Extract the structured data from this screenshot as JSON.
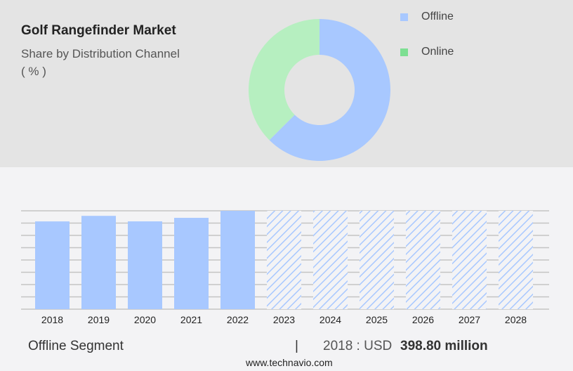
{
  "header": {
    "title": "Golf Rangefinder Market",
    "subtitle": "Share by Distribution Channel",
    "unit": "( % )"
  },
  "colors": {
    "offline": "#a8c8ff",
    "online": "#b6efc0",
    "online_legend": "#7ddf92",
    "grid": "#c4c4c4"
  },
  "chart_data": [
    {
      "type": "pie",
      "donut": true,
      "start": "top",
      "direction": "clockwise",
      "legend_placement": "top-right",
      "slices": [
        {
          "name": "Offline",
          "value": 62.5
        },
        {
          "name": "Online",
          "value": 37.5
        }
      ]
    },
    {
      "type": "bar",
      "categories": [
        "2018",
        "2019",
        "2020",
        "2021",
        "2022",
        "2023",
        "2024",
        "2025",
        "2026",
        "2027",
        "2028"
      ],
      "values": [
        398.8,
        424,
        399,
        415,
        447,
        447,
        447,
        447,
        447,
        447,
        447
      ],
      "forecast": [
        false,
        false,
        false,
        false,
        false,
        true,
        true,
        true,
        true,
        true,
        true
      ],
      "ylim": [
        0,
        447
      ],
      "grid": true,
      "ylabel": "",
      "xlabel": ""
    }
  ],
  "footer": {
    "segment": "Offline Segment",
    "separator": "|",
    "year_label": "2018 : USD",
    "value": "398.80 million",
    "url": "www.technavio.com"
  }
}
